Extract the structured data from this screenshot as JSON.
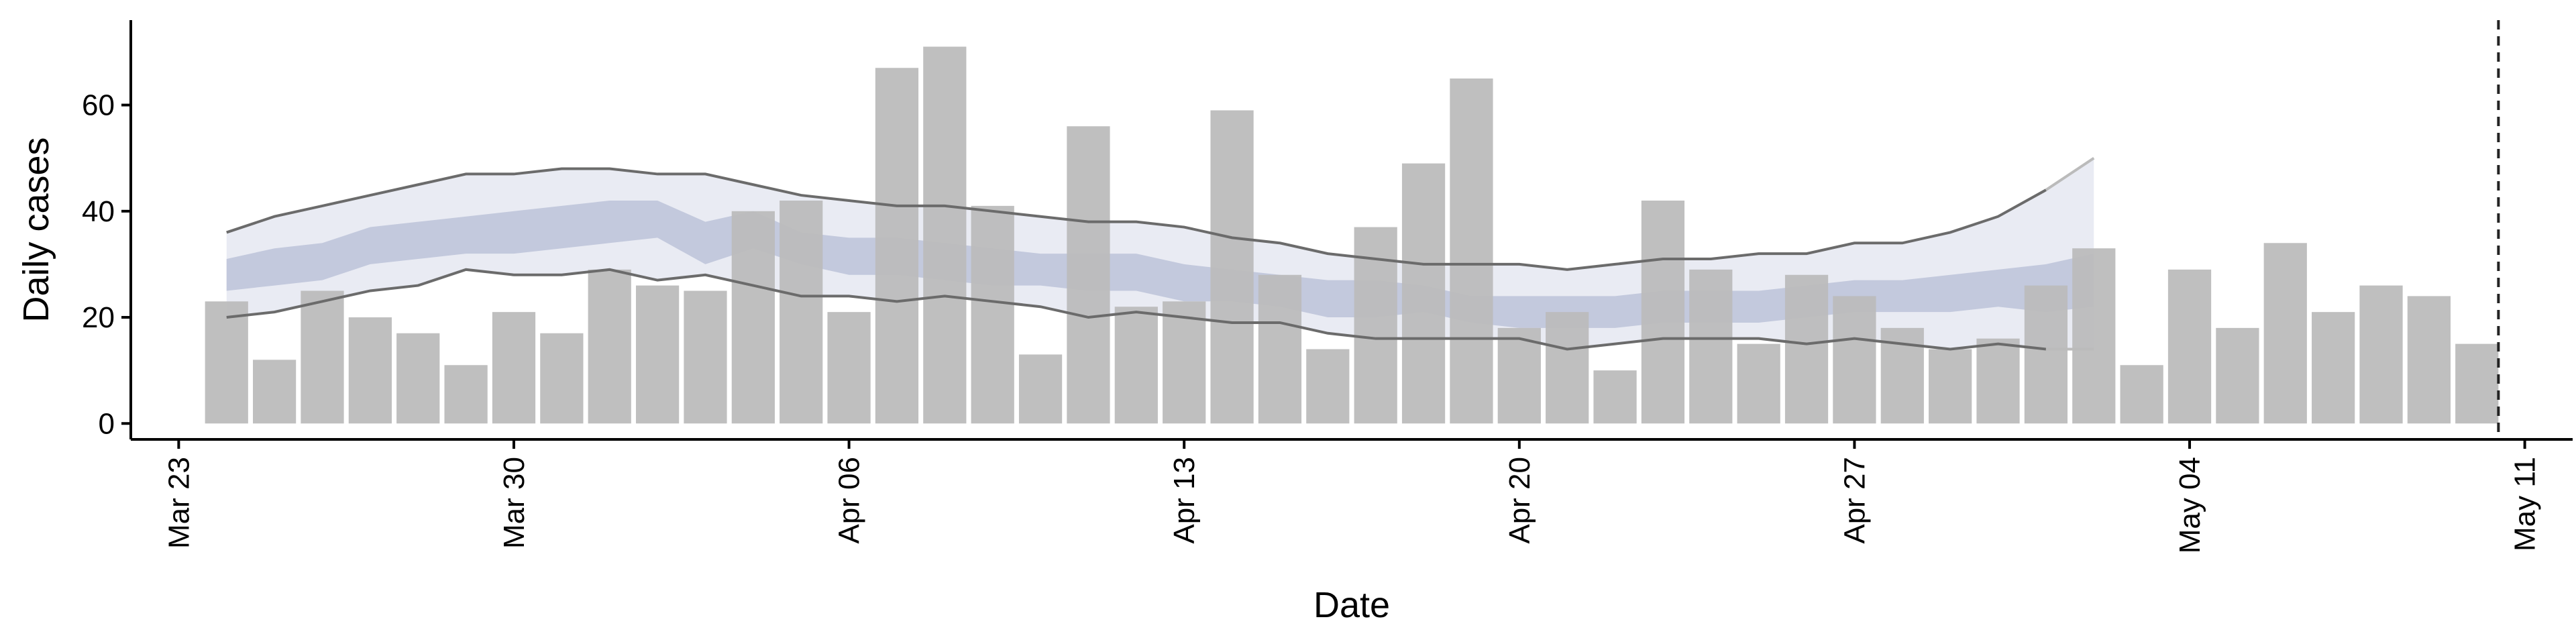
{
  "chart_data": {
    "type": "bar",
    "title": "",
    "xlabel": "Date",
    "ylabel": "Daily cases",
    "ylim": [
      -3,
      76
    ],
    "yticks": [
      0,
      20,
      40,
      60
    ],
    "x_range": [
      "2020-03-22",
      "2020-05-12"
    ],
    "xticks": [
      {
        "date": "2020-03-23",
        "label": "Mar 23"
      },
      {
        "date": "2020-03-30",
        "label": "Mar 30"
      },
      {
        "date": "2020-04-06",
        "label": "Apr 06"
      },
      {
        "date": "2020-04-13",
        "label": "Apr 13"
      },
      {
        "date": "2020-04-20",
        "label": "Apr 20"
      },
      {
        "date": "2020-04-27",
        "label": "Apr 27"
      },
      {
        "date": "2020-05-04",
        "label": "May 04"
      },
      {
        "date": "2020-05-11",
        "label": "May 11"
      }
    ],
    "grid": false,
    "colors": {
      "bars": "#bcbcbc",
      "outer_band": "#e9ebf3",
      "inner_band": "#c3c9dd",
      "lines": "#6b6b6b",
      "future_lines": "#bbbbbb",
      "vline": "#222222"
    },
    "dates": [
      "2020-03-24",
      "2020-03-25",
      "2020-03-26",
      "2020-03-27",
      "2020-03-28",
      "2020-03-29",
      "2020-03-30",
      "2020-03-31",
      "2020-04-01",
      "2020-04-02",
      "2020-04-03",
      "2020-04-04",
      "2020-04-05",
      "2020-04-06",
      "2020-04-07",
      "2020-04-08",
      "2020-04-09",
      "2020-04-10",
      "2020-04-11",
      "2020-04-12",
      "2020-04-13",
      "2020-04-14",
      "2020-04-15",
      "2020-04-16",
      "2020-04-17",
      "2020-04-18",
      "2020-04-19",
      "2020-04-20",
      "2020-04-21",
      "2020-04-22",
      "2020-04-23",
      "2020-04-24",
      "2020-04-25",
      "2020-04-26",
      "2020-04-27",
      "2020-04-28",
      "2020-04-29",
      "2020-04-30",
      "2020-05-01",
      "2020-05-02",
      "2020-05-03",
      "2020-05-04",
      "2020-05-05",
      "2020-05-06",
      "2020-05-07",
      "2020-05-08",
      "2020-05-09",
      "2020-05-10"
    ],
    "daily_cases": [
      23,
      12,
      25,
      20,
      17,
      11,
      21,
      17,
      29,
      26,
      25,
      40,
      42,
      21,
      67,
      71,
      41,
      13,
      56,
      22,
      23,
      59,
      28,
      14,
      37,
      49,
      65,
      18,
      21,
      10,
      42,
      29,
      15,
      28,
      24,
      18,
      14,
      16,
      26,
      33,
      11,
      29,
      18,
      34,
      21,
      26,
      24,
      15
    ],
    "forecast_dates": [
      "2020-03-24",
      "2020-03-25",
      "2020-03-26",
      "2020-03-27",
      "2020-03-28",
      "2020-03-29",
      "2020-03-30",
      "2020-03-31",
      "2020-04-01",
      "2020-04-02",
      "2020-04-03",
      "2020-04-04",
      "2020-04-05",
      "2020-04-06",
      "2020-04-07",
      "2020-04-08",
      "2020-04-09",
      "2020-04-10",
      "2020-04-11",
      "2020-04-12",
      "2020-04-13",
      "2020-04-14",
      "2020-04-15",
      "2020-04-16",
      "2020-04-17",
      "2020-04-18",
      "2020-04-19",
      "2020-04-20",
      "2020-04-21",
      "2020-04-22",
      "2020-04-23",
      "2020-04-24",
      "2020-04-25",
      "2020-04-26",
      "2020-04-27",
      "2020-04-28",
      "2020-04-29",
      "2020-04-30",
      "2020-05-01",
      "2020-05-02"
    ],
    "outer_upper": [
      36,
      39,
      41,
      43,
      45,
      47,
      47,
      48,
      48,
      47,
      47,
      45,
      43,
      42,
      41,
      41,
      40,
      39,
      38,
      38,
      37,
      35,
      34,
      32,
      31,
      30,
      30,
      30,
      29,
      30,
      31,
      31,
      32,
      32,
      34,
      34,
      36,
      39,
      44,
      50
    ],
    "outer_lower": [
      20,
      21,
      23,
      25,
      26,
      29,
      28,
      28,
      29,
      27,
      28,
      26,
      24,
      24,
      23,
      24,
      23,
      22,
      20,
      21,
      20,
      19,
      19,
      17,
      16,
      16,
      16,
      16,
      14,
      15,
      16,
      16,
      16,
      15,
      16,
      15,
      14,
      15,
      14,
      14
    ],
    "inner_upper": [
      31,
      33,
      34,
      37,
      38,
      39,
      40,
      41,
      42,
      42,
      38,
      40,
      36,
      35,
      35,
      34,
      33,
      32,
      32,
      32,
      30,
      29,
      28,
      27,
      27,
      26,
      24,
      24,
      24,
      24,
      25,
      25,
      25,
      26,
      27,
      27,
      28,
      29,
      30,
      32
    ],
    "inner_lower": [
      25,
      26,
      27,
      30,
      31,
      32,
      32,
      33,
      34,
      35,
      30,
      33,
      30,
      28,
      28,
      27,
      26,
      26,
      25,
      25,
      23,
      23,
      22,
      20,
      20,
      21,
      19,
      18,
      18,
      18,
      19,
      19,
      19,
      20,
      21,
      21,
      21,
      22,
      21,
      22
    ],
    "observed_end_date": "2020-05-01",
    "vline_date": "2020-05-10"
  }
}
